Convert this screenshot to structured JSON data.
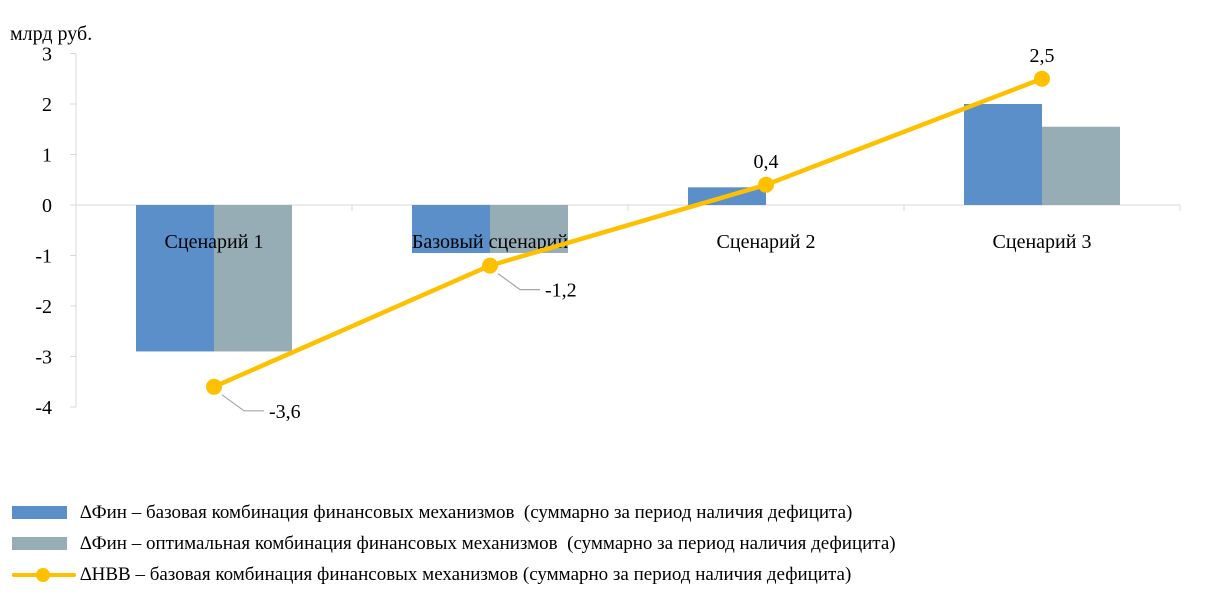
{
  "chart_data": {
    "type": "bar",
    "unit_label": "млрд руб.",
    "categories": [
      "Сценарий 1",
      "Базовый сценарий",
      "Сценарий 2",
      "Сценарий 3"
    ],
    "ylim": [
      -4,
      3
    ],
    "yticks": [
      "3",
      "2",
      "1",
      "0",
      "-1",
      "-2",
      "-3",
      "-4"
    ],
    "grid": false,
    "legend_position": "bottom",
    "series": [
      {
        "name": "∆Фин – базовая комбинация финансовых механизмов  (суммарно за период наличия дефицита)",
        "type": "bar",
        "color": "#5b8fc9",
        "values": [
          -2.9,
          -0.95,
          0.35,
          2.0
        ]
      },
      {
        "name": "∆Фин – оптимальная комбинация финансовых механизмов  (суммарно за период наличия дефицита)",
        "type": "bar",
        "color": "#97adb5",
        "values": [
          -2.9,
          -0.95,
          0.0,
          1.55
        ]
      },
      {
        "name": "∆НВВ – базовая комбинация финансовых механизмов (суммарно за период наличия дефицита)",
        "type": "line",
        "color": "#ffc000",
        "values": [
          -3.6,
          -1.2,
          0.4,
          2.5
        ],
        "labels": [
          "-3,6",
          "-1,2",
          "0,4",
          "2,5"
        ]
      }
    ]
  }
}
